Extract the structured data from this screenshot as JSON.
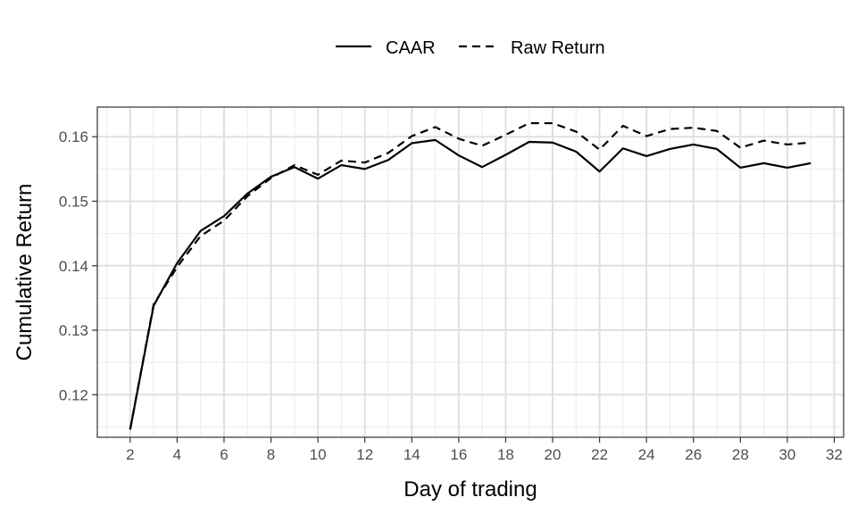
{
  "chart_data": {
    "type": "line",
    "xlabel": "Day of trading",
    "ylabel": "Cumulative Return",
    "xlim": [
      0.6,
      32.4
    ],
    "ylim": [
      0.1134,
      0.1646
    ],
    "x_ticks": [
      2,
      4,
      6,
      8,
      10,
      12,
      14,
      16,
      18,
      20,
      22,
      24,
      26,
      28,
      30,
      32
    ],
    "y_ticks": [
      0.12,
      0.13,
      0.14,
      0.15,
      0.16
    ],
    "x_tick_labels": [
      "2",
      "4",
      "6",
      "8",
      "10",
      "12",
      "14",
      "16",
      "18",
      "20",
      "22",
      "24",
      "26",
      "28",
      "30",
      "32"
    ],
    "y_tick_labels": [
      "0.12",
      "0.13",
      "0.14",
      "0.15",
      "0.16"
    ],
    "grid": true,
    "legend_position": "top",
    "x": [
      2,
      3,
      4,
      5,
      6,
      7,
      8,
      9,
      10,
      11,
      12,
      13,
      14,
      15,
      16,
      17,
      18,
      19,
      20,
      21,
      22,
      23,
      24,
      25,
      26,
      27,
      28,
      29,
      30,
      31
    ],
    "series": [
      {
        "name": "CAAR",
        "style": "solid",
        "color": "#000000",
        "values": [
          0.1146,
          0.1338,
          0.1404,
          0.1454,
          0.1477,
          0.1512,
          0.1538,
          0.1553,
          0.1535,
          0.1556,
          0.155,
          0.1564,
          0.159,
          0.1595,
          0.1571,
          0.1553,
          0.1572,
          0.1592,
          0.1591,
          0.1577,
          0.1546,
          0.1582,
          0.157,
          0.1581,
          0.1588,
          0.1581,
          0.1552,
          0.1559,
          0.1552,
          0.1559
        ]
      },
      {
        "name": "Raw Return",
        "style": "dashed",
        "color": "#000000",
        "values": [
          0.1146,
          0.134,
          0.1398,
          0.1446,
          0.147,
          0.1508,
          0.1536,
          0.1556,
          0.1541,
          0.1563,
          0.156,
          0.1575,
          0.1601,
          0.1615,
          0.1597,
          0.1586,
          0.1603,
          0.1621,
          0.1621,
          0.1608,
          0.158,
          0.1617,
          0.1601,
          0.1612,
          0.1614,
          0.1609,
          0.1583,
          0.1594,
          0.1588,
          0.1591
        ]
      }
    ]
  }
}
